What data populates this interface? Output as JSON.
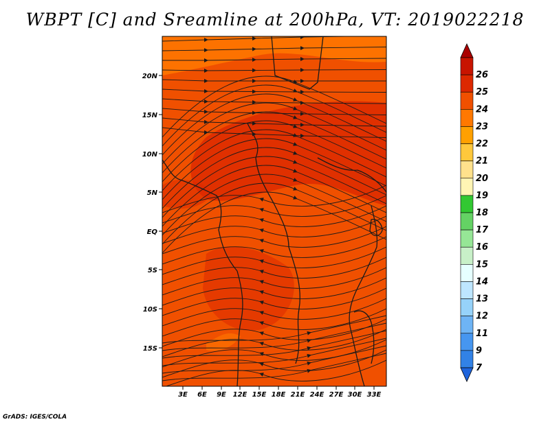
{
  "title": "WBPT [C] and Sreamline at 200hPa, VT: 2019022218",
  "credit": "GrADS: IGES/COLA",
  "lon_labels": [
    "3E",
    "6E",
    "9E",
    "12E",
    "15E",
    "18E",
    "21E",
    "24E",
    "27E",
    "30E",
    "33E"
  ],
  "lat_labels": [
    "20N",
    "15N",
    "10N",
    "5N",
    "EQ",
    "5S",
    "10S",
    "15S"
  ],
  "colorbar": {
    "labels": [
      "7",
      "9",
      "11",
      "12",
      "13",
      "14",
      "15",
      "16",
      "17",
      "18",
      "19",
      "20",
      "21",
      "22",
      "23",
      "24",
      "25",
      "26"
    ],
    "colors": [
      "#1e64dc",
      "#3282e6",
      "#4696f0",
      "#6eb4f5",
      "#96d2fa",
      "#bee6ff",
      "#e6ffff",
      "#c8f0c8",
      "#96e696",
      "#64d264",
      "#32c832",
      "#fff5b4",
      "#ffe18c",
      "#ffc83c",
      "#ffa000",
      "#ff7800",
      "#f05000",
      "#dc2800",
      "#c81400",
      "#aa0000"
    ]
  },
  "map": {
    "field_colors": {
      "base": "#f05000",
      "warm": "#dc2800",
      "cool": "#ff7800"
    },
    "line_color": "#1a1a1a"
  }
}
